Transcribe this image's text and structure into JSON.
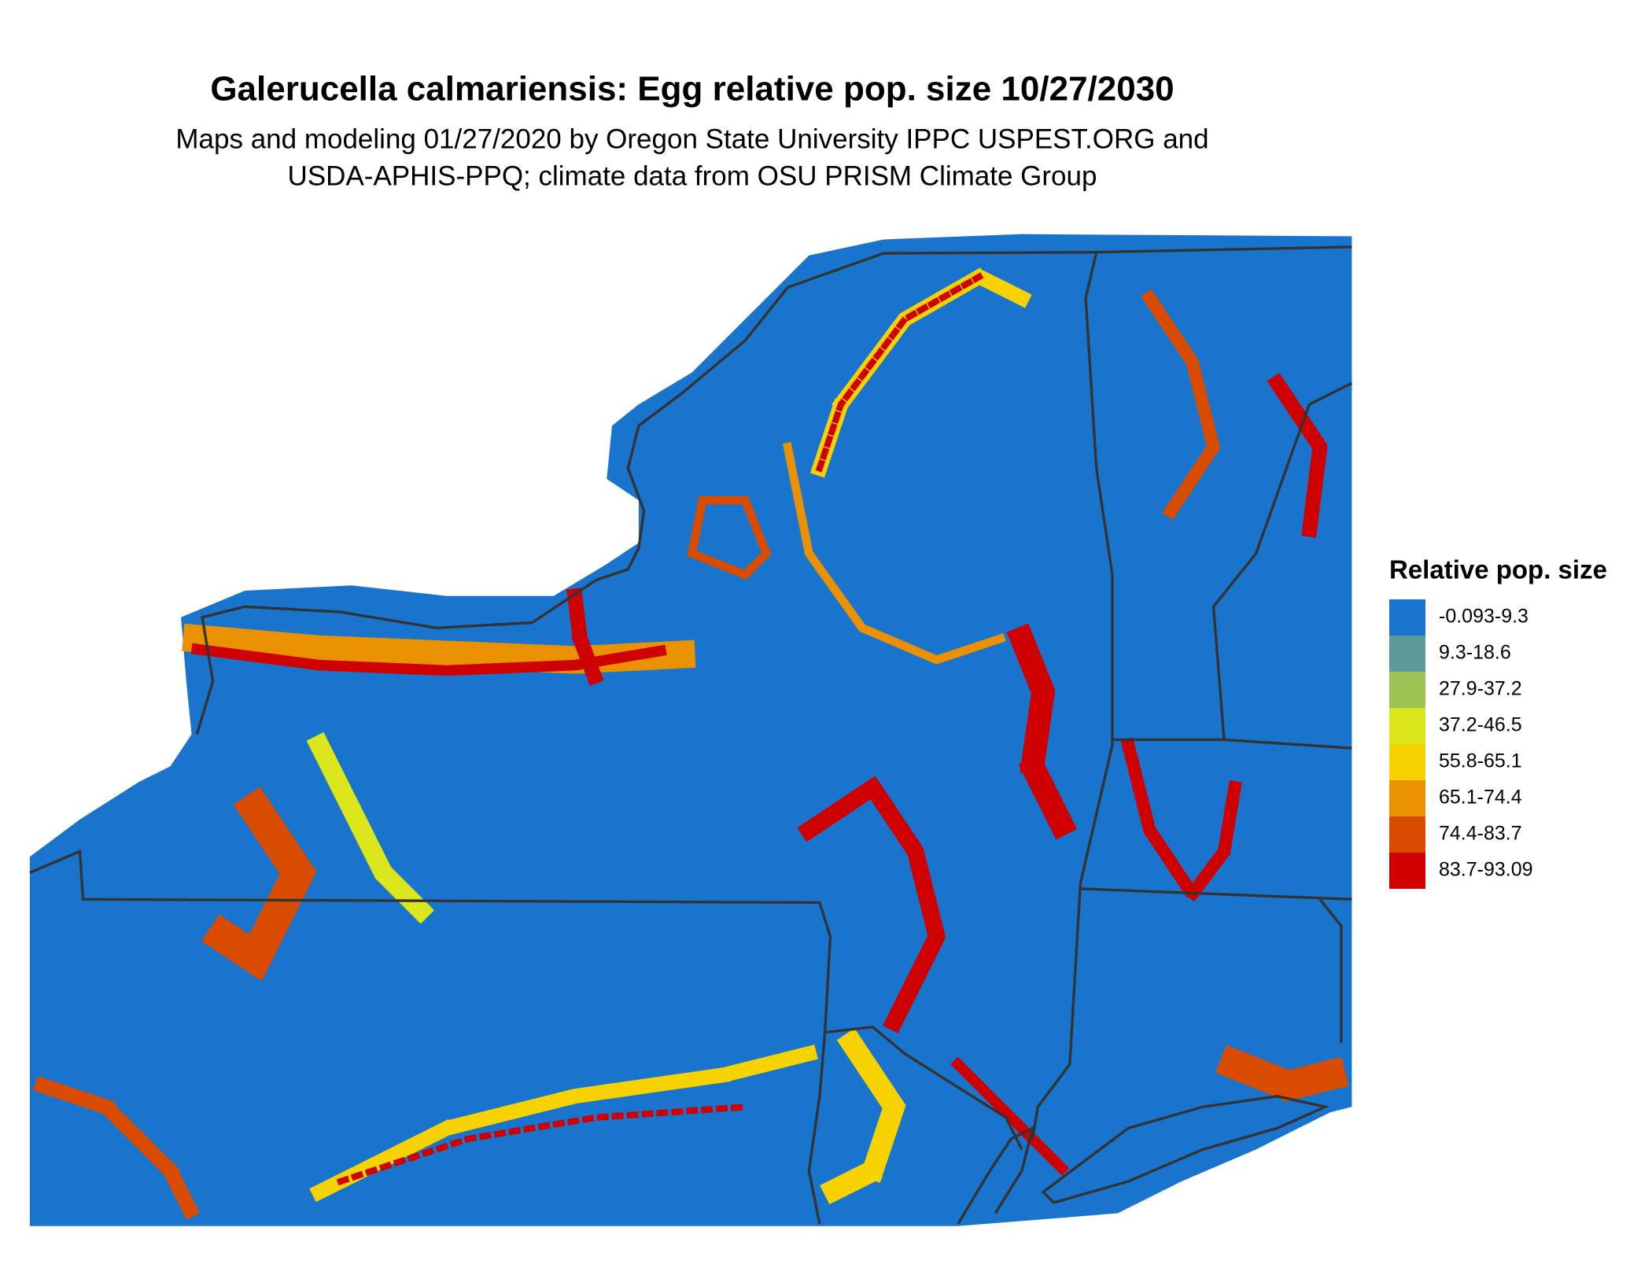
{
  "title": "Galerucella calmariensis: Egg relative pop. size 10/27/2030",
  "subtitle": [
    "Maps and modeling 01/27/2020 by Oregon State University IPPC USPEST.ORG and",
    "USDA-APHIS-PPQ; climate data from OSU PRISM Climate Group"
  ],
  "legend": {
    "title": "Relative pop. size",
    "items": [
      {
        "label": "-0.093-9.3",
        "color": "#1874cd"
      },
      {
        "label": "9.3-18.6",
        "color": "#5b9a99"
      },
      {
        "label": "27.9-37.2",
        "color": "#9dc452"
      },
      {
        "label": "37.2-46.5",
        "color": "#dbe61c"
      },
      {
        "label": "55.8-65.1",
        "color": "#f6d300"
      },
      {
        "label": "65.1-74.4",
        "color": "#e99100"
      },
      {
        "label": "74.4-83.7",
        "color": "#d94c00"
      },
      {
        "label": "83.7-93.09",
        "color": "#cf0000"
      }
    ]
  }
}
